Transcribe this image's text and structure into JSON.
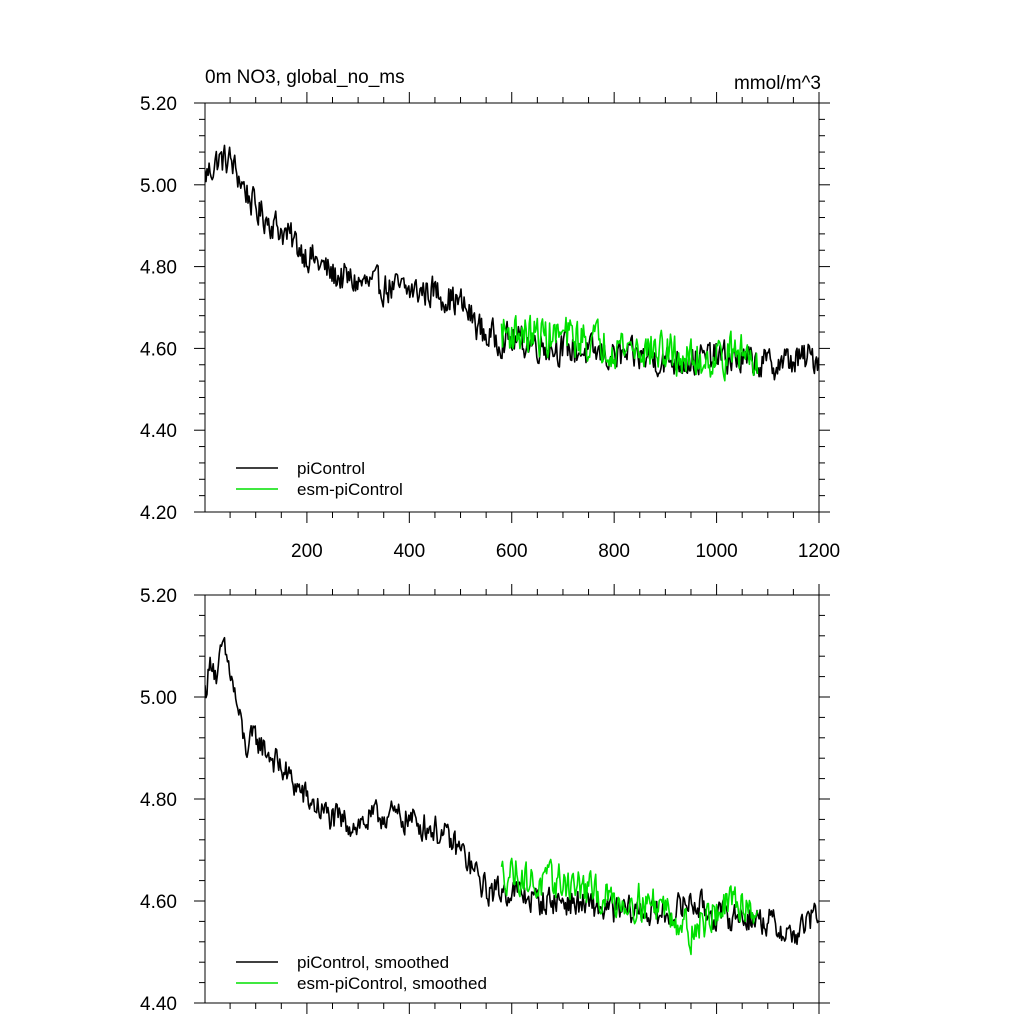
{
  "chart_data": [
    {
      "type": "line",
      "title": "0m NO3, global_no_ms",
      "units": "mmol/m^3",
      "xlim": [
        1,
        1200
      ],
      "ylim": [
        4.2,
        5.2
      ],
      "xticks": [
        200,
        400,
        600,
        800,
        1000,
        1200
      ],
      "xtick_labels": [
        "200",
        "400",
        "600",
        "800",
        "1000",
        "1200"
      ],
      "yticks": [
        4.2,
        4.4,
        4.6,
        4.8,
        5.0,
        5.2
      ],
      "ytick_labels": [
        "4.20",
        "4.40",
        "4.60",
        "4.80",
        "5.00",
        "5.20"
      ],
      "legend_position": "bottom-left",
      "series": [
        {
          "name": "piControl",
          "color": "#000000",
          "noise": 0.055,
          "x": [
            1,
            25,
            50,
            75,
            100,
            150,
            200,
            250,
            300,
            350,
            400,
            450,
            500,
            550,
            600,
            650,
            700,
            750,
            800,
            850,
            900,
            950,
            1000,
            1050,
            1100,
            1150,
            1200
          ],
          "y": [
            5.02,
            5.06,
            5.06,
            5.0,
            4.94,
            4.89,
            4.83,
            4.78,
            4.76,
            4.75,
            4.74,
            4.74,
            4.71,
            4.63,
            4.62,
            4.61,
            4.6,
            4.59,
            4.58,
            4.58,
            4.57,
            4.57,
            4.58,
            4.57,
            4.56,
            4.57,
            4.58
          ]
        },
        {
          "name": "esm-piControl",
          "color": "#00e000",
          "noise": 0.07,
          "x": [
            580,
            600,
            650,
            700,
            750,
            800,
            850,
            900,
            950,
            1000,
            1050,
            1080
          ],
          "y": [
            4.64,
            4.64,
            4.63,
            4.63,
            4.62,
            4.61,
            4.6,
            4.59,
            4.57,
            4.58,
            4.59,
            4.58
          ]
        }
      ]
    },
    {
      "type": "line",
      "title": "",
      "xlim": [
        1,
        1200
      ],
      "ylim": [
        4.4,
        5.2
      ],
      "yticks": [
        4.4,
        4.6,
        4.8,
        5.0,
        5.2
      ],
      "ytick_labels": [
        "4.40",
        "4.60",
        "4.80",
        "5.00",
        "5.20"
      ],
      "legend_position": "bottom-left",
      "series": [
        {
          "name": "piControl, smoothed",
          "color": "#000000",
          "noise": 0.04,
          "x": [
            1,
            15,
            25,
            35,
            50,
            70,
            80,
            100,
            150,
            200,
            250,
            300,
            350,
            400,
            450,
            500,
            550,
            600,
            650,
            700,
            750,
            800,
            850,
            900,
            950,
            1000,
            1050,
            1100,
            1150,
            1200
          ],
          "y": [
            5.01,
            5.08,
            5.03,
            5.1,
            5.05,
            4.95,
            4.9,
            4.92,
            4.86,
            4.8,
            4.76,
            4.75,
            4.77,
            4.76,
            4.74,
            4.7,
            4.62,
            4.62,
            4.6,
            4.6,
            4.59,
            4.58,
            4.58,
            4.57,
            4.6,
            4.57,
            4.57,
            4.56,
            4.53,
            4.58
          ]
        },
        {
          "name": "esm-piControl, smoothed",
          "color": "#00e000",
          "noise": 0.05,
          "x": [
            580,
            600,
            650,
            700,
            750,
            800,
            850,
            900,
            950,
            1000,
            1050,
            1080
          ],
          "y": [
            4.65,
            4.66,
            4.63,
            4.64,
            4.62,
            4.6,
            4.6,
            4.59,
            4.54,
            4.58,
            4.6,
            4.58
          ]
        }
      ]
    }
  ]
}
